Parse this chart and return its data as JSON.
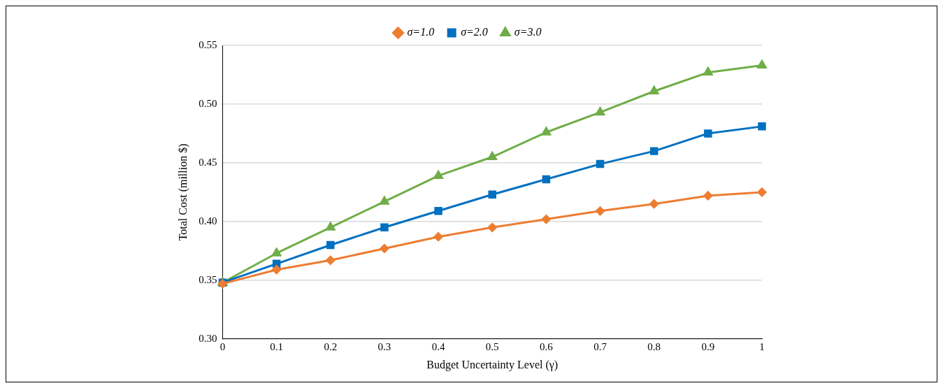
{
  "chart_data": {
    "type": "line",
    "xlabel": "Budget Uncertainty Level (γ)",
    "ylabel": "Total Cost (million $)",
    "x": [
      0,
      0.1,
      0.2,
      0.3,
      0.4,
      0.5,
      0.6,
      0.7,
      0.8,
      0.9,
      1
    ],
    "series": [
      {
        "name": "σ=1.0",
        "color": "#ed7d31",
        "marker": "diamond",
        "values": [
          0.347,
          0.359,
          0.367,
          0.377,
          0.387,
          0.395,
          0.402,
          0.409,
          0.415,
          0.422,
          0.425
        ]
      },
      {
        "name": "σ=2.0",
        "color": "#0070c0",
        "marker": "square",
        "values": [
          0.348,
          0.364,
          0.38,
          0.395,
          0.409,
          0.423,
          0.436,
          0.449,
          0.46,
          0.475,
          0.481
        ]
      },
      {
        "name": "σ=3.0",
        "color": "#70ad47",
        "marker": "triangle",
        "values": [
          0.348,
          0.373,
          0.395,
          0.417,
          0.439,
          0.455,
          0.476,
          0.493,
          0.511,
          0.527,
          0.533
        ]
      }
    ],
    "xlim": [
      0,
      1
    ],
    "xticks": [
      0,
      0.1,
      0.2,
      0.3,
      0.4,
      0.5,
      0.6,
      0.7,
      0.8,
      0.9,
      1
    ],
    "ylim": [
      0.3,
      0.55
    ],
    "yticks": [
      {
        "value": 0.3,
        "label": "0.30"
      },
      {
        "value": 0.35,
        "label": "0.35"
      },
      {
        "value": 0.4,
        "label": "0.40"
      },
      {
        "value": 0.45,
        "label": "0.45"
      },
      {
        "value": 0.5,
        "label": "0.50"
      },
      {
        "value": 0.55,
        "label": "0.55"
      }
    ],
    "grid": "y",
    "legend": "top",
    "line_style": "solid"
  }
}
